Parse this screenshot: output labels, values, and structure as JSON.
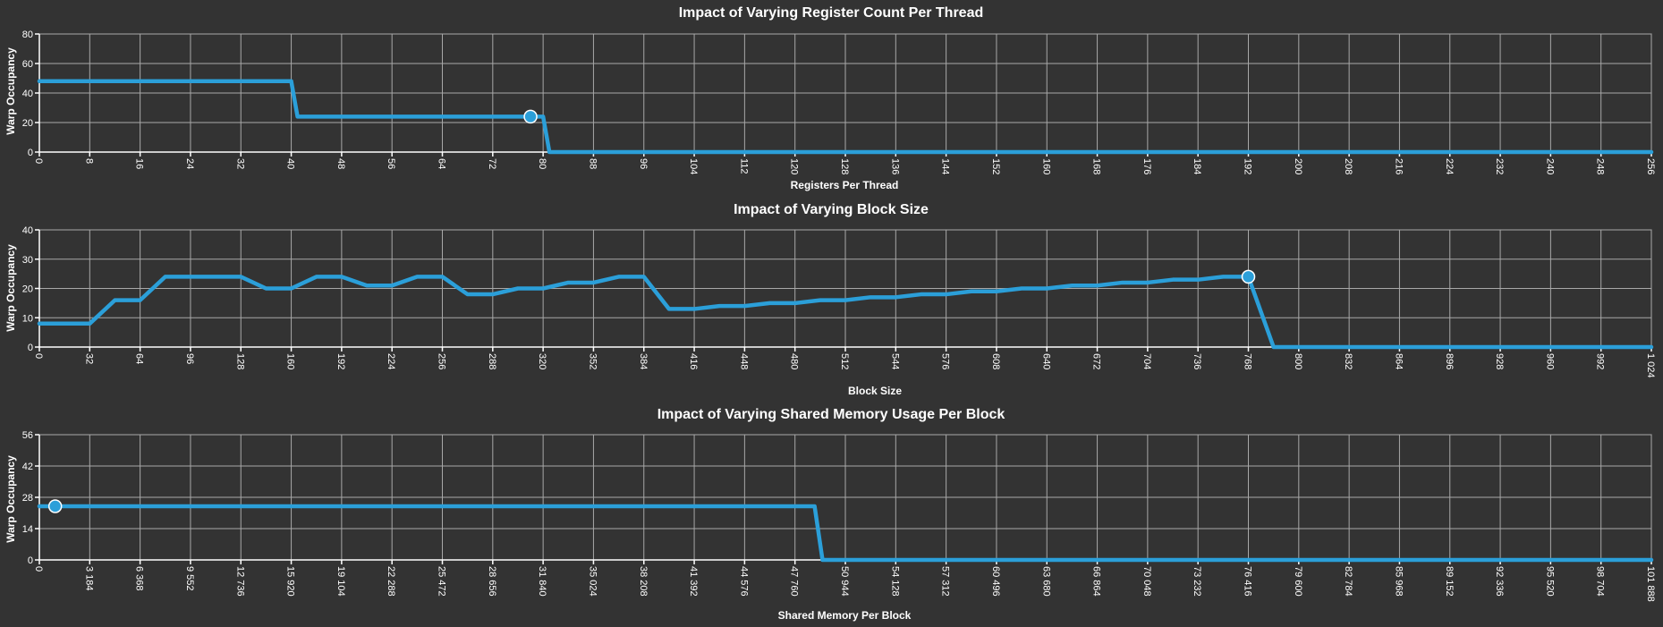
{
  "series_color": "#2b9fd9",
  "chart_data": [
    {
      "type": "line",
      "title": "Impact of Varying Register Count Per Thread",
      "xlabel": "Registers Per Thread",
      "ylabel": "Warp Occupancy",
      "xlim": [
        0,
        256
      ],
      "ylim": [
        0,
        80
      ],
      "x_ticks": [
        0,
        8,
        16,
        24,
        32,
        40,
        48,
        56,
        64,
        72,
        80,
        88,
        96,
        104,
        112,
        120,
        128,
        136,
        144,
        152,
        160,
        168,
        176,
        184,
        192,
        200,
        208,
        216,
        224,
        232,
        240,
        248,
        256
      ],
      "x_tick_labels": [
        "0",
        "8",
        "16",
        "24",
        "32",
        "40",
        "48",
        "56",
        "64",
        "72",
        "80",
        "88",
        "96",
        "104",
        "112",
        "120",
        "128",
        "136",
        "144",
        "152",
        "160",
        "168",
        "176",
        "184",
        "192",
        "200",
        "208",
        "216",
        "224",
        "232",
        "240",
        "248",
        "256"
      ],
      "y_ticks": [
        0,
        20,
        40,
        60,
        80
      ],
      "grid": true,
      "series": [
        {
          "x": [
            0,
            40,
            41,
            80,
            81,
            256
          ],
          "y": [
            48,
            48,
            24,
            24,
            0,
            0
          ]
        }
      ],
      "marker": {
        "x": 78,
        "y": 24
      }
    },
    {
      "type": "line",
      "title": "Impact of Varying Block Size",
      "xlabel": "Block Size",
      "ylabel": "Warp Occupancy",
      "xlim": [
        0,
        1024
      ],
      "ylim": [
        0,
        40
      ],
      "x_ticks": [
        0,
        32,
        64,
        96,
        128,
        160,
        192,
        224,
        256,
        288,
        320,
        352,
        384,
        416,
        448,
        480,
        512,
        544,
        576,
        608,
        640,
        672,
        704,
        736,
        768,
        800,
        832,
        864,
        896,
        928,
        960,
        992,
        1024
      ],
      "x_tick_labels": [
        "0",
        "32",
        "64",
        "96",
        "128",
        "160",
        "192",
        "224",
        "256",
        "288",
        "320",
        "352",
        "384",
        "416",
        "448",
        "480",
        "512",
        "544",
        "576",
        "608",
        "640",
        "672",
        "704",
        "736",
        "768",
        "800",
        "832",
        "864",
        "896",
        "928",
        "960",
        "992",
        "1 024"
      ],
      "y_ticks": [
        0,
        10,
        20,
        30,
        40
      ],
      "grid": true,
      "series": [
        {
          "x": [
            0,
            32,
            48,
            64,
            80,
            96,
            128,
            144,
            160,
            176,
            192,
            208,
            224,
            240,
            256,
            272,
            288,
            304,
            320,
            336,
            352,
            368,
            384,
            400,
            416,
            432,
            448,
            464,
            480,
            496,
            512,
            528,
            544,
            560,
            576,
            592,
            608,
            624,
            640,
            656,
            672,
            688,
            704,
            720,
            736,
            752,
            768,
            784,
            1024
          ],
          "y": [
            8,
            8,
            16,
            16,
            24,
            24,
            24,
            20,
            20,
            24,
            24,
            21,
            21,
            24,
            24,
            18,
            18,
            20,
            20,
            22,
            22,
            24,
            24,
            13,
            13,
            14,
            14,
            15,
            15,
            16,
            16,
            17,
            17,
            18,
            18,
            19,
            19,
            20,
            20,
            21,
            21,
            22,
            22,
            23,
            23,
            24,
            24,
            0,
            0
          ]
        }
      ],
      "marker": {
        "x": 768,
        "y": 24
      }
    },
    {
      "type": "line",
      "title": "Impact of Varying Shared Memory Usage Per Block",
      "xlabel": "Shared Memory Per Block",
      "ylabel": "Warp Occupancy",
      "xlim": [
        0,
        101888
      ],
      "ylim": [
        0,
        56
      ],
      "x_ticks": [
        0,
        3184,
        6368,
        9552,
        12736,
        15920,
        19104,
        22288,
        25472,
        28656,
        31840,
        35024,
        38208,
        41392,
        44576,
        47760,
        50944,
        54128,
        57312,
        60496,
        63680,
        66864,
        70048,
        73232,
        76416,
        79600,
        82784,
        85968,
        89152,
        92336,
        95520,
        98704,
        101888
      ],
      "x_tick_labels": [
        "0",
        "3 184",
        "6 368",
        "9 552",
        "12 736",
        "15 920",
        "19 104",
        "22 288",
        "25 472",
        "28 656",
        "31 840",
        "35 024",
        "38 208",
        "41 392",
        "44 576",
        "47 760",
        "50 944",
        "54 128",
        "57 312",
        "60 496",
        "63 680",
        "66 864",
        "70 048",
        "73 232",
        "76 416",
        "79 600",
        "82 784",
        "85 968",
        "89 152",
        "92 336",
        "95 520",
        "98 704",
        "101 888"
      ],
      "y_ticks": [
        0,
        14,
        28,
        42,
        56
      ],
      "grid": true,
      "series": [
        {
          "x": [
            0,
            49000,
            49500,
            101888
          ],
          "y": [
            24,
            24,
            0,
            0
          ]
        }
      ],
      "marker": {
        "x": 1000,
        "y": 24
      }
    }
  ]
}
